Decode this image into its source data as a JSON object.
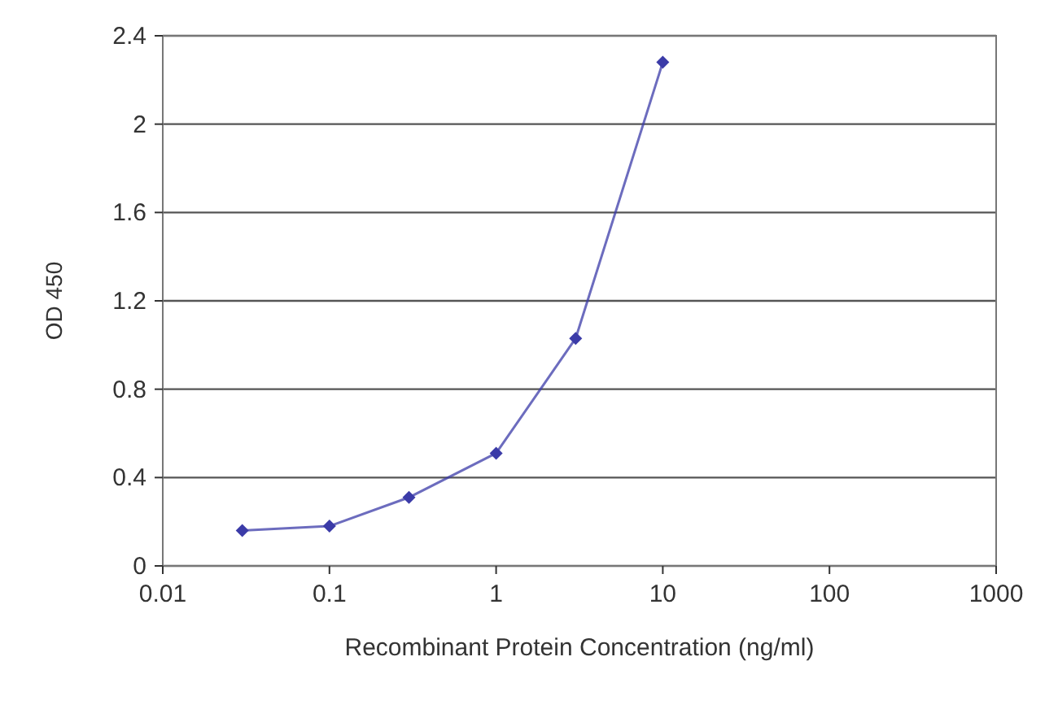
{
  "chart_data": {
    "type": "line",
    "xlabel": "Recombinant Protein Concentration (ng/ml)",
    "ylabel": "OD 450",
    "x": [
      0.03,
      0.1,
      0.3,
      1,
      3,
      10
    ],
    "series": [
      {
        "color": "#3b3ba8",
        "values": [
          0.16,
          0.18,
          0.31,
          0.51,
          1.03,
          2.28
        ]
      }
    ],
    "log": "x",
    "xlim": [
      0.01,
      1000
    ],
    "xticks": [
      0.01,
      0.1,
      1,
      10,
      100,
      1000
    ],
    "ylim": [
      0,
      2.4
    ],
    "yticks": [
      0,
      0.4,
      0.8,
      1.2,
      1.6,
      2,
      2.4
    ],
    "grid": "y",
    "marker": "diamond",
    "line_style": "solid"
  }
}
